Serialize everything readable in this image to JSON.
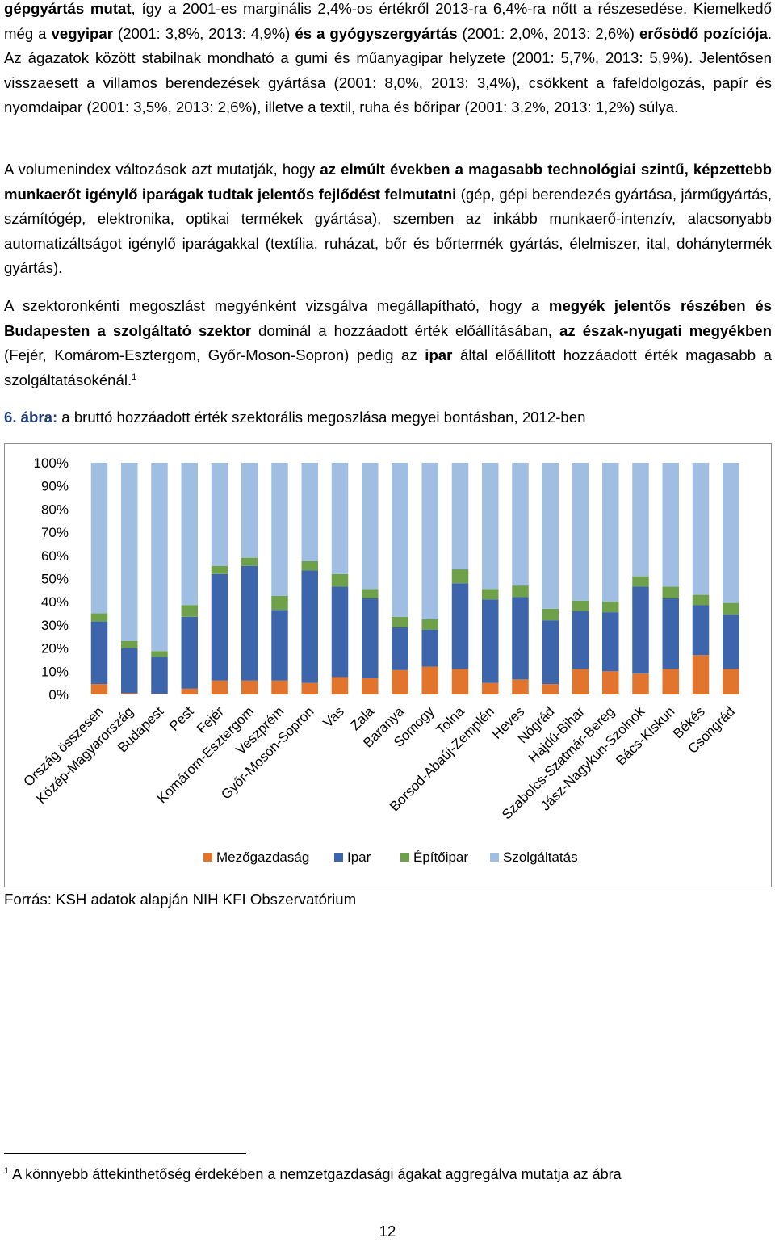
{
  "para1": {
    "s1": "gépgyártás mutat",
    "s2": ", így a 2001-es marginális 2,4%-os értékről 2013-ra 6,4%-ra nőtt a részesedése. Kiemelkedő még a ",
    "s3": "vegyipar",
    "s4": " (2001: 3,8%, 2013: 4,9%) ",
    "s5": "és a gyógyszergyártás",
    "s6": " (2001: 2,0%, 2013: 2,6%) ",
    "s7": "erősödő pozíciója",
    "s8": ". Az ágazatok között stabilnak mondható a gumi és műanyagipar helyzete (2001: 5,7%, 2013: 5,9%). Jelentősen visszaesett a villamos berendezések gyártása (2001: 8,0%, 2013: 3,4%), csökkent a fafeldolgozás, papír és nyomdaipar (2001: 3,5%, 2013: 2,6%), illetve a textil, ruha és bőripar (2001: 3,2%, 2013: 1,2%) súlya."
  },
  "para2": {
    "s1": "A volumenindex változások azt mutatják, hogy ",
    "s2": "az elmúlt években a magasabb technológiai szintű, képzettebb munkaerőt igénylő iparágak tudtak jelentős fejlődést felmutatni",
    "s3": " (gép, gépi berendezés gyártása, járműgyártás, számítógép, elektronika, optikai termékek gyártása), szemben az inkább munkaerő-intenzív, alacsonyabb automatizáltságot igénylő iparágakkal (textília, ruházat, bőr és bőrtermék gyártás, élelmiszer, ital, dohánytermék gyártás)."
  },
  "para3": {
    "s1": "A szektoronkénti megoszlást megyénként vizsgálva megállapítható, hogy a ",
    "s2": "megyék jelentős részében és Budapesten a szolgáltató szektor",
    "s3": " dominál a hozzáadott érték előállításában, ",
    "s4": "az észak-nyugati megyékben",
    "s5": " (Fejér, Komárom-Esztergom, Győr-Moson-Sopron) pedig az ",
    "s6": "ipar",
    "s7": " által előállított hozzáadott érték magasabb a szolgáltatásokénál.",
    "sup": "1"
  },
  "caption": {
    "num": "6. ábra:",
    "text": " a bruttó hozzáadott érték szektorális megoszlása megyei bontásban, 2012-ben"
  },
  "source": "Forrás: KSH adatok alapján NIH KFI Obszervatórium",
  "footnote": {
    "mark": "1",
    "text": " A könnyebb áttekinthetőség érdekében a nemzetgazdasági ágakat aggregálva mutatja az ábra"
  },
  "page_number": "12",
  "chart_data": {
    "type": "bar",
    "stacked": true,
    "ylim": [
      0,
      100
    ],
    "yticks": [
      "0%",
      "10%",
      "20%",
      "30%",
      "40%",
      "50%",
      "60%",
      "70%",
      "80%",
      "90%",
      "100%"
    ],
    "legend_position": "bottom",
    "categories": [
      "Ország összesen",
      "Közép-Magyarország",
      "Budapest",
      "Pest",
      "Fejér",
      "Komárom-Esztergom",
      "Veszprém",
      "Győr-Moson-Sopron",
      "Vas",
      "Zala",
      "Baranya",
      "Somogy",
      "Tolna",
      "Borsod-Abaúj-Zemplén",
      "Heves",
      "Nógrád",
      "Hajdú-Bihar",
      "Szabolcs-Szatmár-Bereg",
      "Jász-Nagykun-Szolnok",
      "Bács-Kiskun",
      "Békés",
      "Csongrád"
    ],
    "series": [
      {
        "name": "Mezőgazdaság",
        "color": "#e2752e",
        "values": [
          4.5,
          0.5,
          0.2,
          2.5,
          6,
          6,
          6,
          5,
          7.5,
          7,
          10.5,
          12,
          11,
          5,
          6.5,
          4.5,
          11,
          10,
          9,
          11,
          17,
          11
        ]
      },
      {
        "name": "Ipar",
        "color": "#3c65ac",
        "values": [
          27,
          19.5,
          16,
          31,
          46,
          49.5,
          30.5,
          48.5,
          39,
          34.5,
          18.5,
          16,
          37,
          36,
          35.5,
          27.5,
          25,
          25.5,
          37.5,
          30.5,
          21.5,
          23.5
        ]
      },
      {
        "name": "Építőipar",
        "color": "#6fa14b",
        "values": [
          3.5,
          3,
          2.5,
          5,
          3.5,
          3.5,
          6,
          4,
          5.5,
          4,
          4.5,
          4.5,
          6,
          4.5,
          5,
          5,
          4.5,
          4.5,
          4.5,
          5,
          4.5,
          5
        ]
      },
      {
        "name": "Szolgáltatás",
        "color": "#a0bee2",
        "values": [
          65,
          77,
          81.3,
          61.5,
          44.5,
          41,
          57.5,
          42.5,
          48,
          54.5,
          66.5,
          67.5,
          46,
          54.5,
          53,
          63,
          59.5,
          60,
          49,
          53.5,
          57,
          60.5
        ]
      }
    ]
  }
}
